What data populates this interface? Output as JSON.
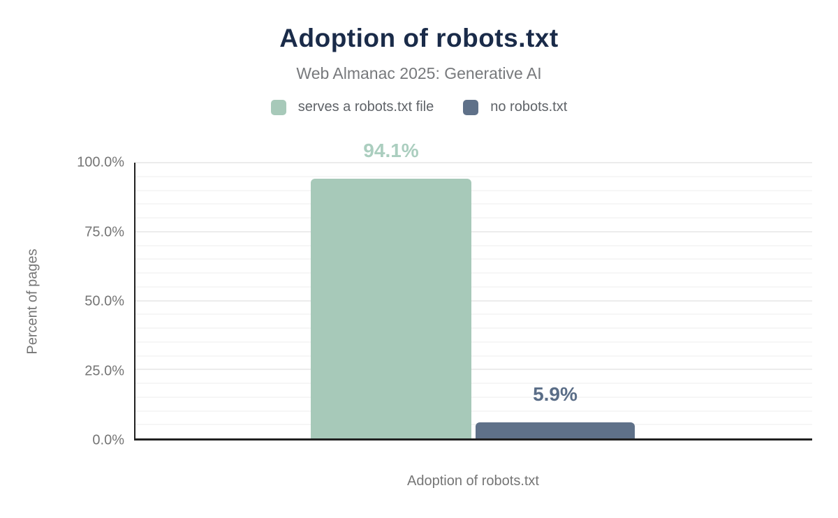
{
  "title": "Adoption of robots.txt",
  "subtitle": "Web Almanac 2025: Generative AI",
  "legend": [
    {
      "label": "serves a robots.txt file",
      "color": "#a7c9b9"
    },
    {
      "label": "no robots.txt",
      "color": "#5f7189"
    }
  ],
  "y_axis": {
    "title": "Percent of pages",
    "ticks": [
      "100.0%",
      "75.0%",
      "50.0%",
      "25.0%",
      "0.0%"
    ]
  },
  "x_axis": {
    "title": "Adoption of robots.txt"
  },
  "bars": [
    {
      "name": "serves a robots.txt file",
      "label": "94.1%",
      "value": 94.1,
      "color": "#a7c9b9",
      "label_color": "#abcebf"
    },
    {
      "name": "no robots.txt",
      "label": "5.9%",
      "value": 5.9,
      "color": "#5f7189",
      "label_color": "#5a6d87"
    }
  ],
  "colors": {
    "title": "#1a2b49",
    "subtitle": "#77797c",
    "axis_line": "#212121",
    "tick_text": "#757575",
    "grid_minor": "#f6f6f6",
    "grid_major": "#ececec"
  },
  "chart_data": {
    "type": "bar",
    "title": "Adoption of robots.txt",
    "subtitle": "Web Almanac 2025: Generative AI",
    "categories": [
      "Adoption of robots.txt"
    ],
    "series": [
      {
        "name": "serves a robots.txt file",
        "values": [
          94.1
        ],
        "color": "#a7c9b9"
      },
      {
        "name": "no robots.txt",
        "values": [
          5.9
        ],
        "color": "#5f7189"
      }
    ],
    "data_labels": [
      "94.1%",
      "5.9%"
    ],
    "xlabel": "Adoption of robots.txt",
    "ylabel": "Percent of pages",
    "ylim": [
      0,
      100
    ],
    "yticks": [
      0,
      25,
      50,
      75,
      100
    ],
    "ytick_format": "percent_one_decimal",
    "grid": true,
    "minor_grid_step": 5,
    "legend_position": "top"
  }
}
